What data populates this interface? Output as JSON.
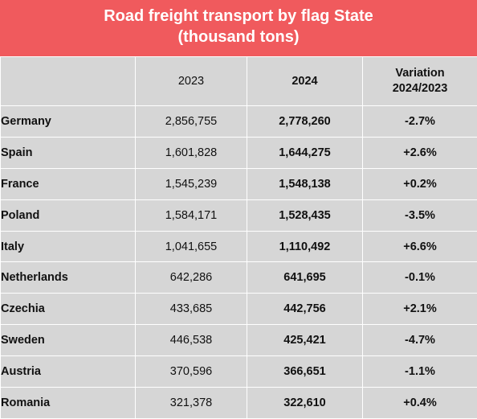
{
  "chart_data": {
    "type": "table",
    "title_lines": [
      "Road freight transport by flag State",
      "(thousand tons)"
    ],
    "columns": {
      "country": "",
      "y2023": "2023",
      "y2024": "2024",
      "variation_lines": [
        "Variation",
        "2024/2023"
      ]
    },
    "rows": [
      {
        "country": "Germany",
        "v2023": "2,856,755",
        "v2024": "2,778,260",
        "variation": "-2.7%"
      },
      {
        "country": "Spain",
        "v2023": "1,601,828",
        "v2024": "1,644,275",
        "variation": "+2.6%"
      },
      {
        "country": "France",
        "v2023": "1,545,239",
        "v2024": "1,548,138",
        "variation": "+0.2%"
      },
      {
        "country": "Poland",
        "v2023": "1,584,171",
        "v2024": "1,528,435",
        "variation": "-3.5%"
      },
      {
        "country": "Italy",
        "v2023": "1,041,655",
        "v2024": "1,110,492",
        "variation": "+6.6%"
      },
      {
        "country": "Netherlands",
        "v2023": "642,286",
        "v2024": "641,695",
        "variation": "-0.1%"
      },
      {
        "country": "Czechia",
        "v2023": "433,685",
        "v2024": "442,756",
        "variation": "+2.1%"
      },
      {
        "country": "Sweden",
        "v2023": "446,538",
        "v2024": "425,421",
        "variation": "-4.7%"
      },
      {
        "country": "Austria",
        "v2023": "370,596",
        "v2024": "366,651",
        "variation": "-1.1%"
      },
      {
        "country": "Romania",
        "v2023": "321,378",
        "v2024": "322,610",
        "variation": "+0.4%"
      }
    ]
  },
  "colors": {
    "title_background": "#f05a5d",
    "title_text": "#ffffff",
    "cell_background": "#d6d6d6",
    "grid_lines": "#ffffff",
    "text": "#111111"
  }
}
